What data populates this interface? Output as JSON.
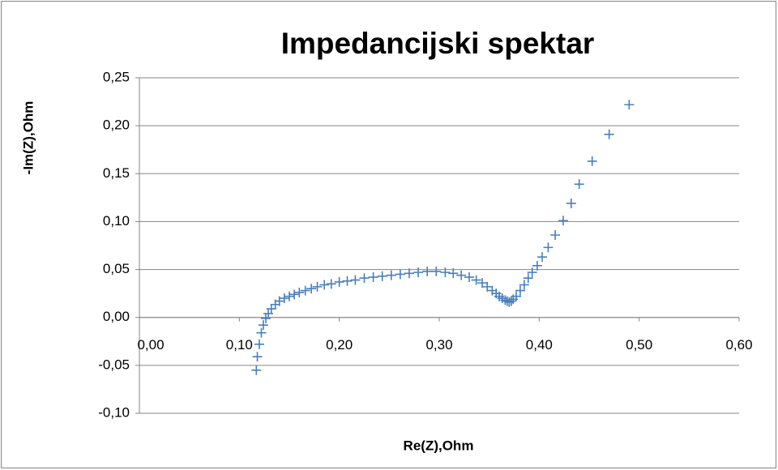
{
  "chart_data": {
    "type": "scatter",
    "title": "Impedancijski spektar",
    "x_label": "Re(Z),Ohm",
    "y_label": "-Im(Z),Ohm",
    "color": "#4a7ebb",
    "marker": "plus",
    "grid": true,
    "xlim": [
      0,
      0.6
    ],
    "ylim": [
      -0.1,
      0.25
    ],
    "xticks": [
      {
        "value": 0,
        "label": "0,00"
      },
      {
        "value": 0.1,
        "label": "0,10"
      },
      {
        "value": 0.2,
        "label": "0,20"
      },
      {
        "value": 0.3,
        "label": "0,30"
      },
      {
        "value": 0.4,
        "label": "0,40"
      },
      {
        "value": 0.5,
        "label": "0,50"
      },
      {
        "value": 0.6,
        "label": "0,60"
      }
    ],
    "yticks": [
      {
        "value": -0.1,
        "label": "-0,10"
      },
      {
        "value": -0.05,
        "label": "-0,05"
      },
      {
        "value": 0,
        "label": "0,00"
      },
      {
        "value": 0.05,
        "label": "0,05"
      },
      {
        "value": 0.1,
        "label": "0,10"
      },
      {
        "value": 0.15,
        "label": "0,15"
      },
      {
        "value": 0.2,
        "label": "0,20"
      },
      {
        "value": 0.25,
        "label": "0,25"
      }
    ],
    "x": [
      0.117,
      0.118,
      0.12,
      0.122,
      0.124,
      0.1265,
      0.129,
      0.132,
      0.136,
      0.14,
      0.145,
      0.15,
      0.155,
      0.16,
      0.166,
      0.172,
      0.178,
      0.185,
      0.192,
      0.2,
      0.208,
      0.216,
      0.225,
      0.234,
      0.243,
      0.252,
      0.261,
      0.27,
      0.279,
      0.288,
      0.297,
      0.306,
      0.314,
      0.322,
      0.33,
      0.337,
      0.343,
      0.348,
      0.353,
      0.357,
      0.36,
      0.363,
      0.366,
      0.368,
      0.37,
      0.372,
      0.374,
      0.377,
      0.381,
      0.385,
      0.389,
      0.393,
      0.398,
      0.403,
      0.409,
      0.416,
      0.424,
      0.432,
      0.44,
      0.453,
      0.47,
      0.49
    ],
    "values": [
      -0.055,
      -0.041,
      -0.028,
      -0.016,
      -0.008,
      -0.001,
      0.004,
      0.009,
      0.0135,
      0.017,
      0.02,
      0.022,
      0.024,
      0.026,
      0.028,
      0.03,
      0.032,
      0.034,
      0.035,
      0.037,
      0.038,
      0.039,
      0.041,
      0.042,
      0.043,
      0.044,
      0.045,
      0.046,
      0.047,
      0.048,
      0.048,
      0.047,
      0.046,
      0.044,
      0.042,
      0.039,
      0.036,
      0.032,
      0.028,
      0.025,
      0.022,
      0.02,
      0.018,
      0.017,
      0.016,
      0.017,
      0.019,
      0.022,
      0.028,
      0.034,
      0.041,
      0.047,
      0.054,
      0.063,
      0.073,
      0.086,
      0.101,
      0.119,
      0.139,
      0.163,
      0.191,
      0.222
    ]
  }
}
